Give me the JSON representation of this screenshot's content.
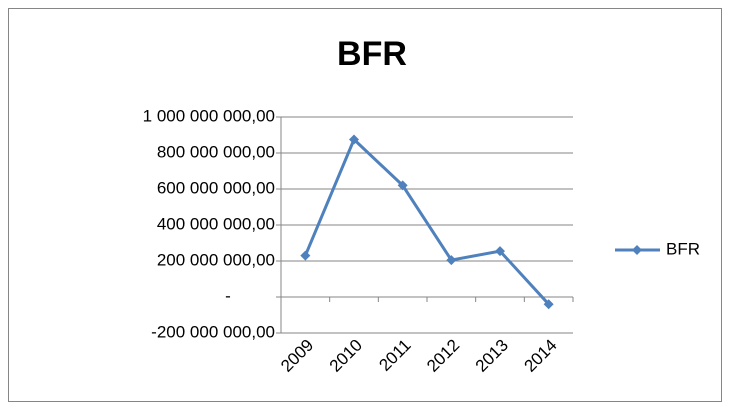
{
  "chart_data": {
    "type": "line",
    "title": "BFR",
    "categories": [
      "2009",
      "2010",
      "2011",
      "2012",
      "2013",
      "2014"
    ],
    "series": [
      {
        "name": "BFR",
        "color": "#4f81bd",
        "values": [
          230000000,
          875000000,
          620000000,
          205000000,
          255000000,
          -40000000
        ]
      }
    ],
    "ylim": [
      -200000000,
      1000000000
    ],
    "yticks": [
      {
        "value": -200000000,
        "label": "-200 000 000,00"
      },
      {
        "value": 0,
        "label": "-"
      },
      {
        "value": 200000000,
        "label": "200 000 000,00"
      },
      {
        "value": 400000000,
        "label": "400 000 000,00"
      },
      {
        "value": 600000000,
        "label": "600 000 000,00"
      },
      {
        "value": 800000000,
        "label": "800 000 000,00"
      },
      {
        "value": 1000000000,
        "label": "1 000 000 000,00"
      }
    ],
    "grid": true,
    "legend": "right"
  }
}
